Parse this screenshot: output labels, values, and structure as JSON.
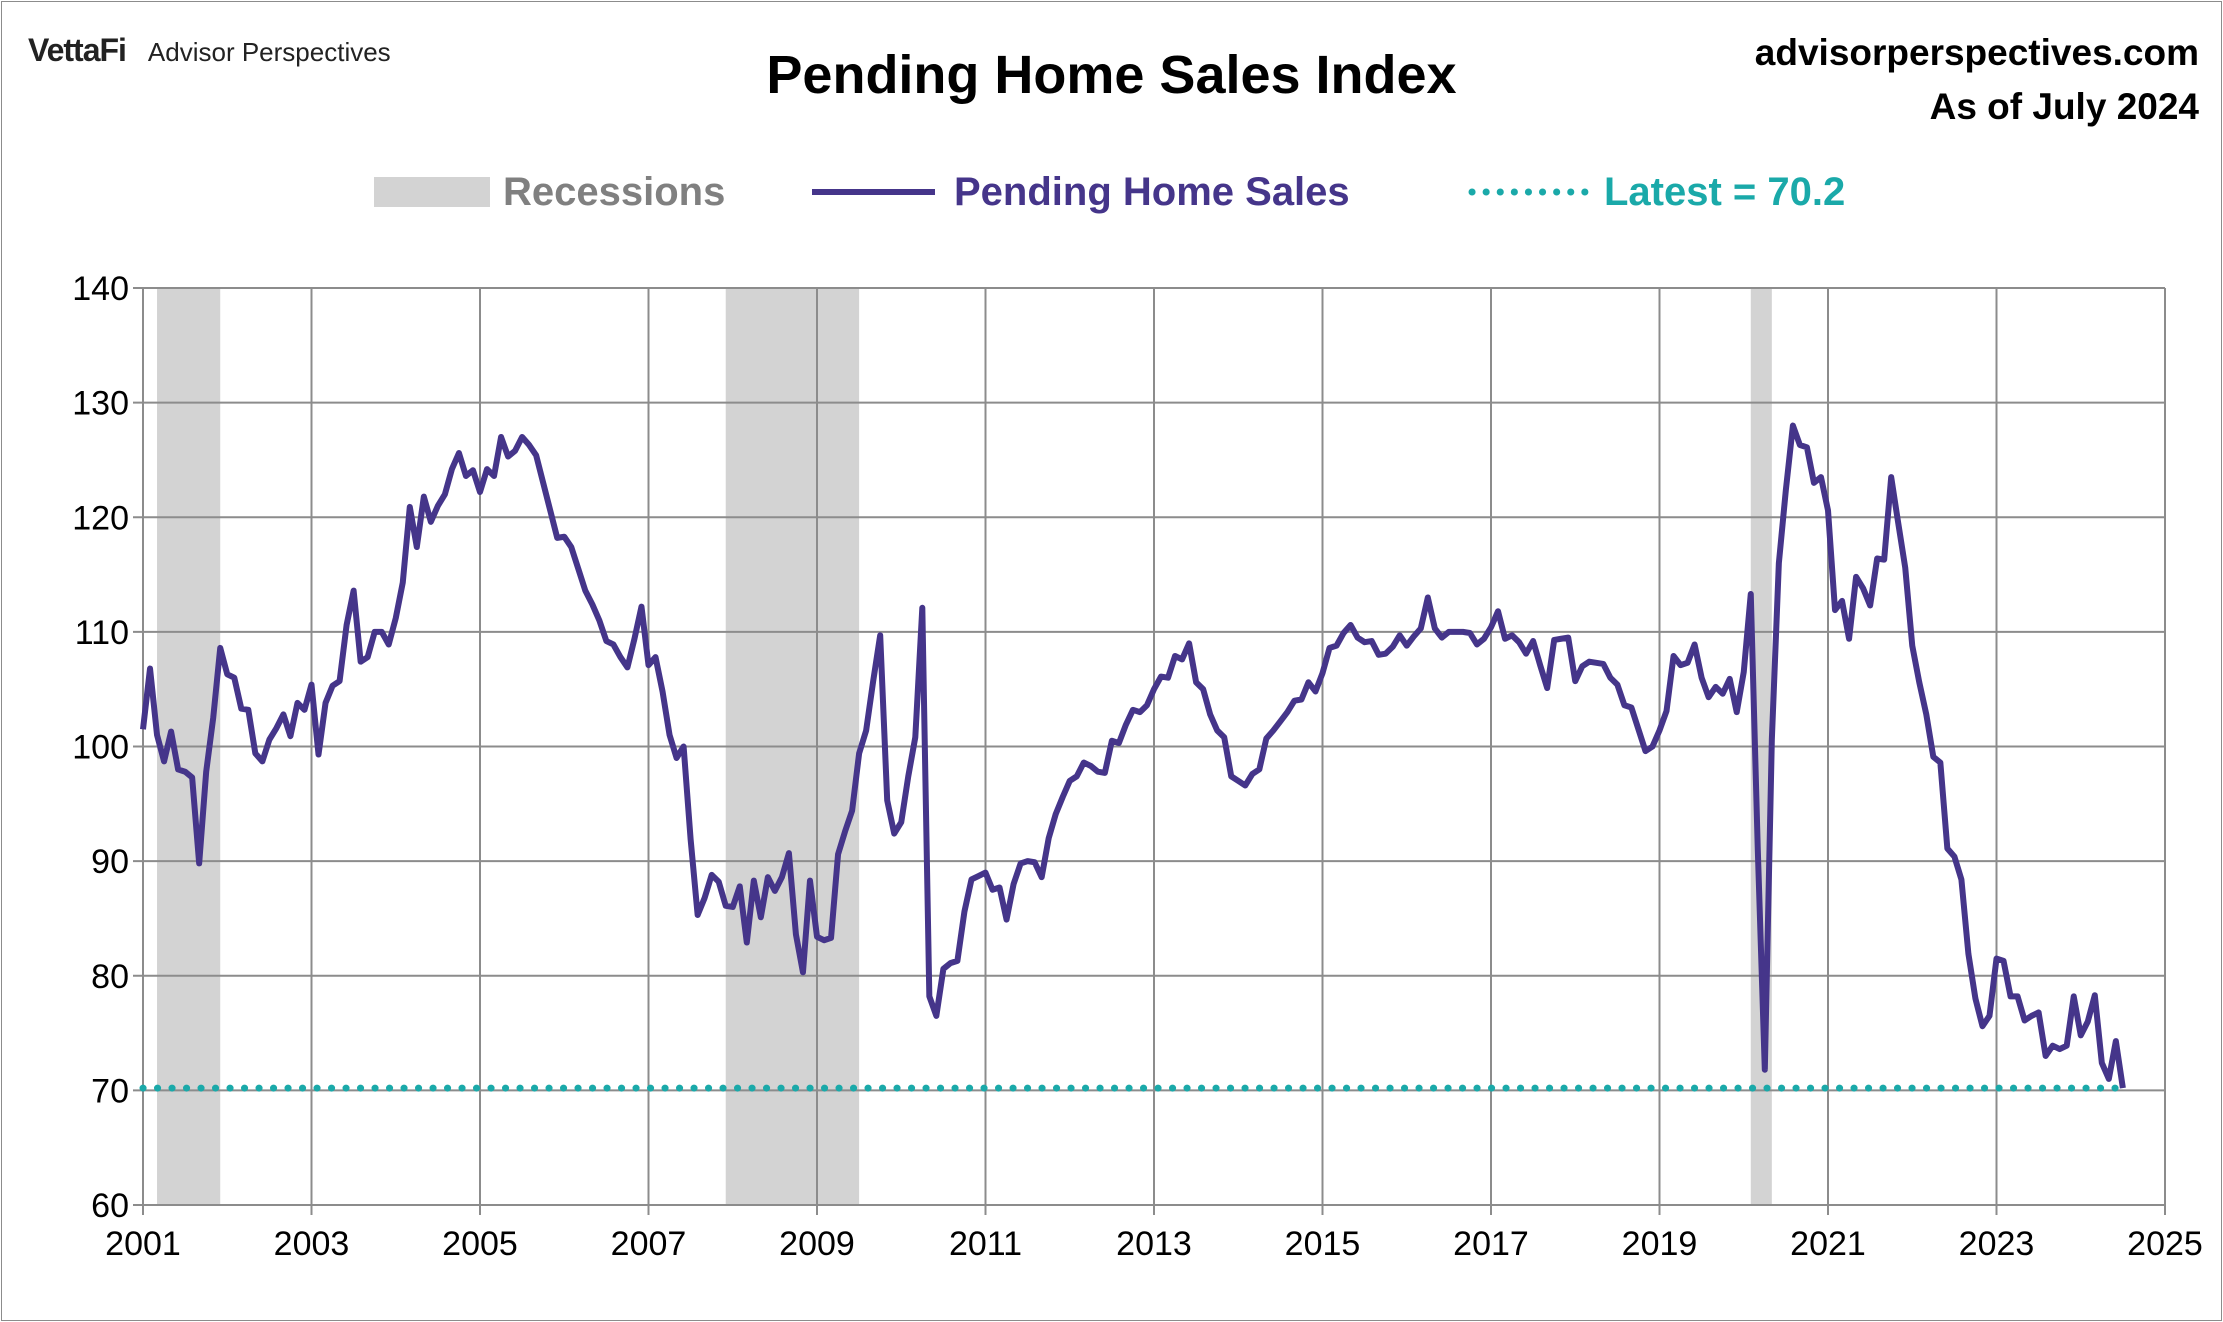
{
  "header": {
    "logo_brand": "VettaFi",
    "logo_sub": "Advisor Perspectives",
    "site": "advisorperspectives.com",
    "as_of": "As of July 2024"
  },
  "chart_data": {
    "type": "line",
    "title": "Pending Home Sales Index",
    "xlabel": "",
    "ylabel": "",
    "ylim": [
      60,
      140
    ],
    "yticks": [
      60,
      70,
      80,
      90,
      100,
      110,
      120,
      130,
      140
    ],
    "xlim": [
      2001,
      2025
    ],
    "xticks": [
      "2001",
      "2003",
      "2005",
      "2007",
      "2009",
      "2011",
      "2013",
      "2015",
      "2017",
      "2019",
      "2021",
      "2023",
      "2025"
    ],
    "grid": true,
    "legend": {
      "placement": "top",
      "entries": [
        "Recessions",
        "Pending Home Sales",
        "Latest = 70.2"
      ]
    },
    "colors": {
      "series": "#45358a",
      "latest": "#1aa9a9",
      "recession": "#d3d3d3",
      "grid": "#8c8c8c",
      "recession_text": "#808080"
    },
    "recessions": [
      [
        "2001-03",
        "2001-11"
      ],
      [
        "2007-12",
        "2009-06"
      ],
      [
        "2020-02",
        "2020-04"
      ]
    ],
    "latest": 70.2,
    "series": [
      {
        "name": "Pending Home Sales",
        "start": "2001-01",
        "frequency": "monthly",
        "values": [
          101.5,
          106.8,
          101,
          98.7,
          101.3,
          98,
          97.8,
          97.3,
          89.8,
          97.8,
          102.5,
          108.6,
          106.3,
          106,
          103.3,
          103.2,
          99.4,
          98.7,
          100.6,
          101.6,
          102.8,
          100.9,
          103.8,
          103.2,
          105.4,
          99.3,
          103.8,
          105.3,
          105.7,
          110.6,
          113.6,
          107.4,
          107.8,
          110,
          110,
          108.9,
          111.2,
          114.3,
          120.9,
          117.4,
          121.8,
          119.6,
          121,
          122,
          124.2,
          125.6,
          123.6,
          124.1,
          122.2,
          124.2,
          123.6,
          127,
          125.3,
          125.8,
          127,
          126.3,
          125.4,
          123,
          120.6,
          118.2,
          118.3,
          117.4,
          115.5,
          113.6,
          112.4,
          111,
          109.2,
          108.9,
          107.8,
          106.9,
          109.4,
          112.2,
          107.1,
          107.8,
          104.8,
          101,
          99,
          100,
          91.9,
          85.3,
          86.8,
          88.8,
          88.2,
          86.1,
          86,
          87.8,
          82.9,
          88.3,
          85.1,
          88.6,
          87.4,
          88.6,
          90.7,
          83.6,
          80.3,
          88.3,
          83.4,
          83.1,
          83.3,
          90.6,
          92.6,
          94.4,
          99.4,
          101.4,
          105.7,
          109.7,
          95.3,
          92.4,
          93.4,
          97.4,
          100.8,
          112.1,
          78.2,
          76.5,
          80.6,
          81.1,
          81.3,
          85.6,
          88.4,
          88.7,
          89,
          87.5,
          87.7,
          84.9,
          88,
          89.8,
          90,
          89.9,
          88.6,
          92,
          94.1,
          95.6,
          97,
          97.4,
          98.6,
          98.3,
          97.8,
          97.7,
          100.5,
          100.3,
          101.9,
          103.2,
          103,
          103.6,
          105,
          106.1,
          106,
          107.9,
          107.6,
          109,
          105.6,
          105,
          102.8,
          101.4,
          100.8,
          97.4,
          97,
          96.6,
          97.6,
          98,
          100.7,
          101.4,
          102.2,
          103,
          104,
          104.1,
          105.6,
          104.8,
          106.4,
          108.6,
          108.8,
          109.9,
          110.6,
          109.5,
          109.1,
          109.2,
          108,
          108.1,
          108.7,
          109.7,
          108.8,
          109.6,
          110.3,
          113,
          110.3,
          109.5,
          110,
          110,
          110,
          109.9,
          108.9,
          109.4,
          110.4,
          111.8,
          109.4,
          109.7,
          109.1,
          108.1,
          109.2,
          107.1,
          105.1,
          109.3,
          109.4,
          109.5,
          105.7,
          107,
          107.4,
          107.3,
          107.2,
          106,
          105.4,
          103.6,
          103.4,
          101.5,
          99.6,
          100,
          101.4,
          103.1,
          107.9,
          107.1,
          107.3,
          108.9,
          106,
          104.3,
          105.2,
          104.6,
          105.9,
          103,
          106.5,
          113.3,
          91,
          71.8,
          100.6,
          116,
          122.4,
          128,
          126.3,
          126.1,
          123,
          123.5,
          120.6,
          111.9,
          112.7,
          109.4,
          114.8,
          113.8,
          112.3,
          116.4,
          116.3,
          123.5,
          119.5,
          115.6,
          108.8,
          105.6,
          102.8,
          99.1,
          98.6,
          91.1,
          90.4,
          88.4,
          81.9,
          78,
          75.6,
          76.5,
          81.5,
          81.3,
          78.2,
          78.2,
          76.1,
          76.5,
          76.8,
          73,
          73.9,
          73.6,
          73.9,
          78.2,
          74.8,
          76,
          78.3,
          72.4,
          71,
          74.3,
          70.2
        ]
      }
    ]
  }
}
